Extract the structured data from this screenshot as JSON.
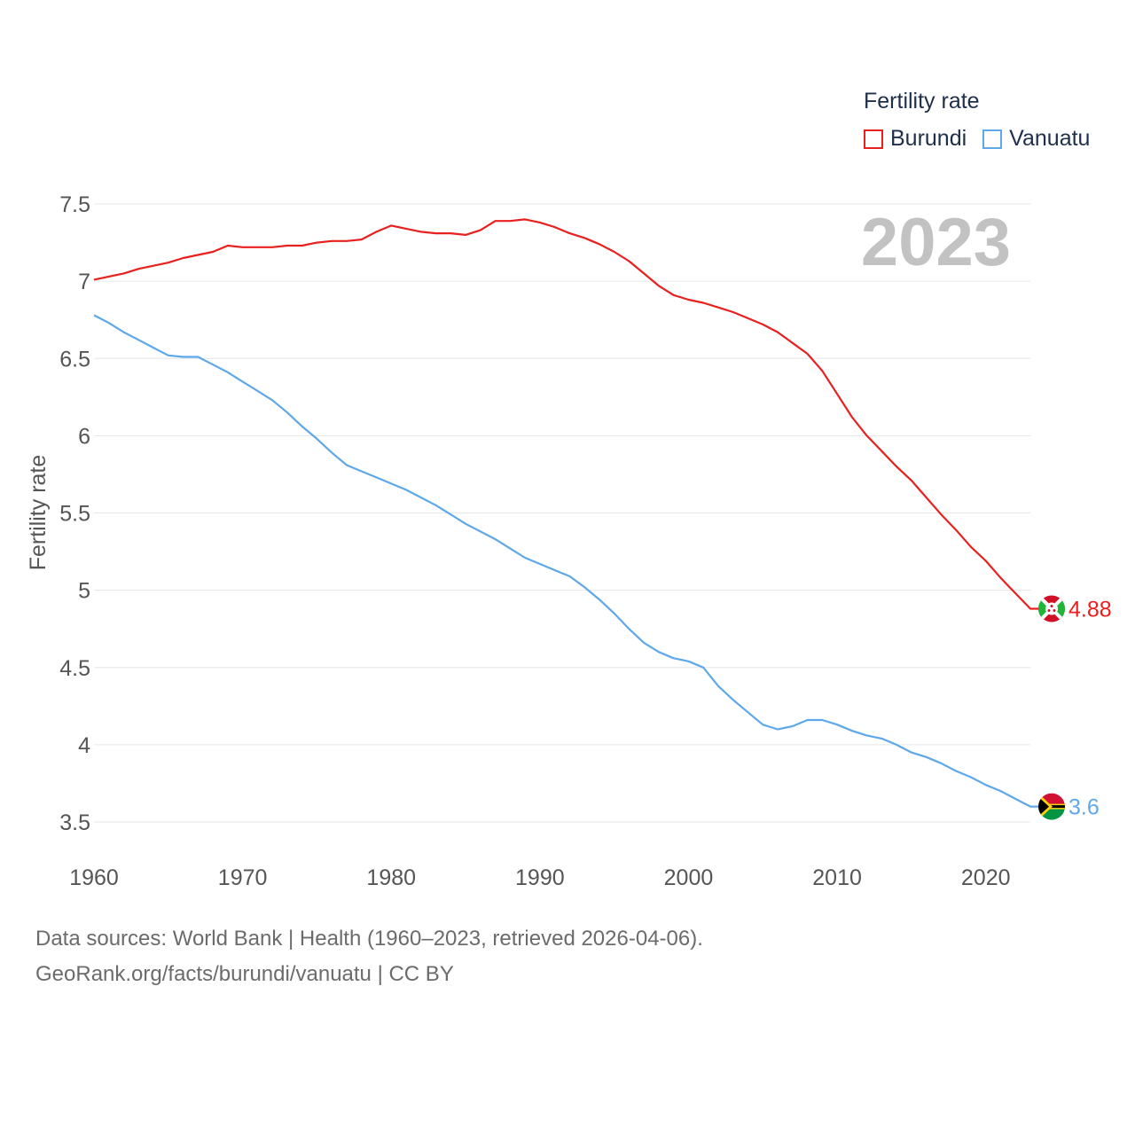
{
  "legend": {
    "title": "Fertility rate",
    "items": [
      {
        "name": "Burundi",
        "color": "#e8201e"
      },
      {
        "name": "Vanuatu",
        "color": "#5ea8ea"
      }
    ]
  },
  "current_year": "2023",
  "footer": {
    "line1": "Data sources: World Bank | Health (1960–2023, retrieved 2026-04-06).",
    "line2": "GeoRank.org/facts/burundi/vanuatu | CC BY"
  },
  "chart_data": {
    "type": "line",
    "title": "",
    "xlabel": "",
    "ylabel": "Fertility rate",
    "xlim": [
      1960,
      2023
    ],
    "ylim": [
      3.5,
      7.5
    ],
    "x_ticks": [
      "1960",
      "1970",
      "1980",
      "1990",
      "2000",
      "2010",
      "2020"
    ],
    "y_ticks": [
      "3.5",
      "4",
      "4.5",
      "5",
      "5.5",
      "6",
      "6.5",
      "7",
      "7.5"
    ],
    "grid": true,
    "x": [
      1960,
      1961,
      1962,
      1963,
      1964,
      1965,
      1966,
      1967,
      1968,
      1969,
      1970,
      1971,
      1972,
      1973,
      1974,
      1975,
      1976,
      1977,
      1978,
      1979,
      1980,
      1981,
      1982,
      1983,
      1984,
      1985,
      1986,
      1987,
      1988,
      1989,
      1990,
      1991,
      1992,
      1993,
      1994,
      1995,
      1996,
      1997,
      1998,
      1999,
      2000,
      2001,
      2002,
      2003,
      2004,
      2005,
      2006,
      2007,
      2008,
      2009,
      2010,
      2011,
      2012,
      2013,
      2014,
      2015,
      2016,
      2017,
      2018,
      2019,
      2020,
      2021,
      2022,
      2023
    ],
    "series": [
      {
        "name": "Burundi",
        "color": "#e8201e",
        "end_label": "4.88",
        "values": [
          7.01,
          7.03,
          7.05,
          7.08,
          7.1,
          7.12,
          7.15,
          7.17,
          7.19,
          7.23,
          7.22,
          7.22,
          7.22,
          7.23,
          7.23,
          7.25,
          7.26,
          7.26,
          7.27,
          7.32,
          7.36,
          7.34,
          7.32,
          7.31,
          7.31,
          7.3,
          7.33,
          7.39,
          7.39,
          7.4,
          7.38,
          7.35,
          7.31,
          7.28,
          7.24,
          7.19,
          7.13,
          7.05,
          6.97,
          6.91,
          6.88,
          6.86,
          6.83,
          6.8,
          6.76,
          6.72,
          6.67,
          6.6,
          6.53,
          6.42,
          6.27,
          6.12,
          6.0,
          5.9,
          5.8,
          5.71,
          5.6,
          5.49,
          5.39,
          5.28,
          5.19,
          5.08,
          4.98,
          4.88
        ]
      },
      {
        "name": "Vanuatu",
        "color": "#5ea8ea",
        "end_label": "3.6",
        "values": [
          6.78,
          6.73,
          6.67,
          6.62,
          6.57,
          6.52,
          6.51,
          6.51,
          6.46,
          6.41,
          6.35,
          6.29,
          6.23,
          6.15,
          6.06,
          5.98,
          5.89,
          5.81,
          5.77,
          5.73,
          5.69,
          5.65,
          5.6,
          5.55,
          5.49,
          5.43,
          5.38,
          5.33,
          5.27,
          5.21,
          5.17,
          5.13,
          5.09,
          5.02,
          4.94,
          4.85,
          4.75,
          4.66,
          4.6,
          4.56,
          4.54,
          4.5,
          4.38,
          4.29,
          4.21,
          4.13,
          4.1,
          4.12,
          4.16,
          4.16,
          4.13,
          4.09,
          4.06,
          4.04,
          4.0,
          3.95,
          3.92,
          3.88,
          3.83,
          3.79,
          3.74,
          3.7,
          3.65,
          3.6
        ]
      }
    ]
  }
}
